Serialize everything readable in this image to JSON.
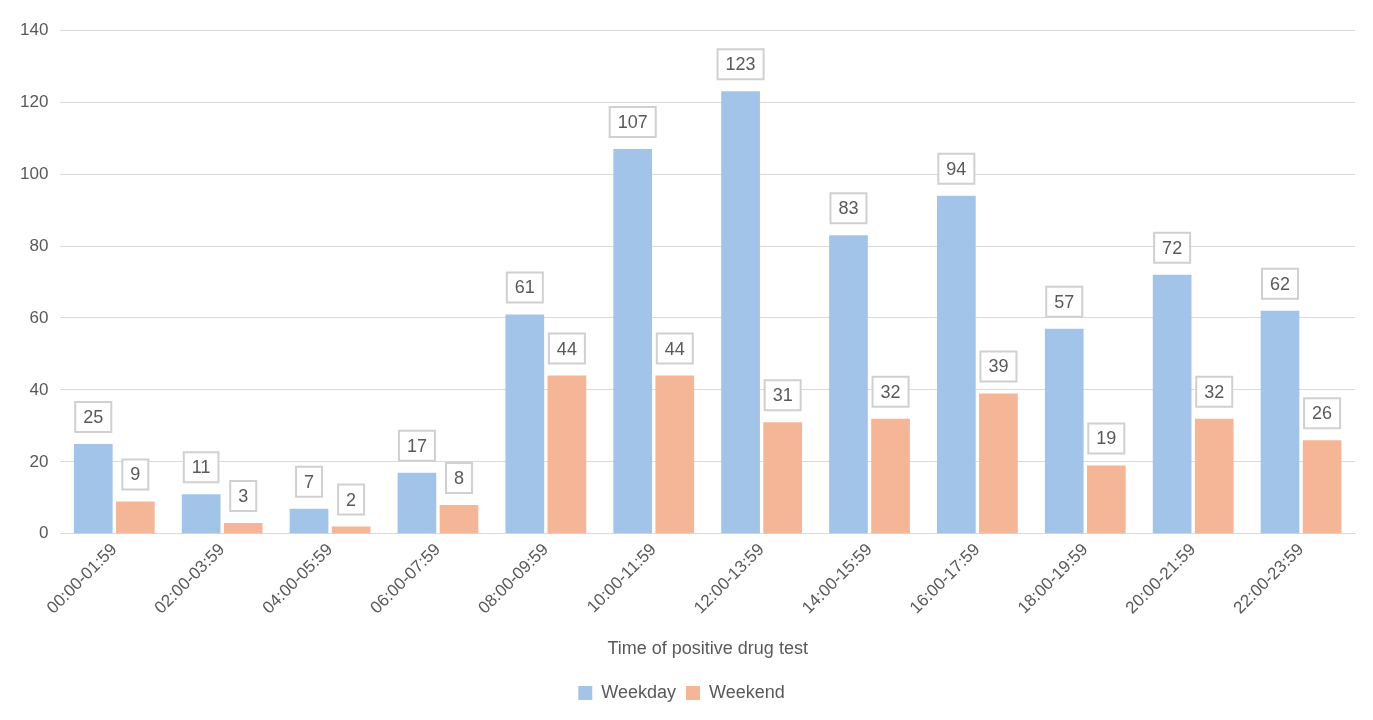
{
  "chart_data": {
    "type": "bar",
    "xlabel": "Time of positive drug test",
    "categories": [
      "00:00-01:59",
      "02:00-03:59",
      "04:00-05:59",
      "06:00-07:59",
      "08:00-09:59",
      "10:00-11:59",
      "12:00-13:59",
      "14:00-15:59",
      "16:00-17:59",
      "18:00-19:59",
      "20:00-21:59",
      "22:00-23:59"
    ],
    "series": [
      {
        "name": "Weekday",
        "color": "#a3c4e9",
        "values": [
          25,
          11,
          7,
          17,
          61,
          107,
          123,
          83,
          94,
          57,
          72,
          62
        ]
      },
      {
        "name": "Weekend",
        "color": "#f5b597",
        "values": [
          9,
          3,
          2,
          8,
          44,
          44,
          31,
          32,
          39,
          19,
          32,
          26
        ]
      }
    ],
    "ylim": [
      0,
      140
    ],
    "yticks": [
      0,
      20,
      40,
      60,
      80,
      100,
      120,
      140
    ],
    "grid": "y",
    "legend": "bottom",
    "data_labels": true
  }
}
